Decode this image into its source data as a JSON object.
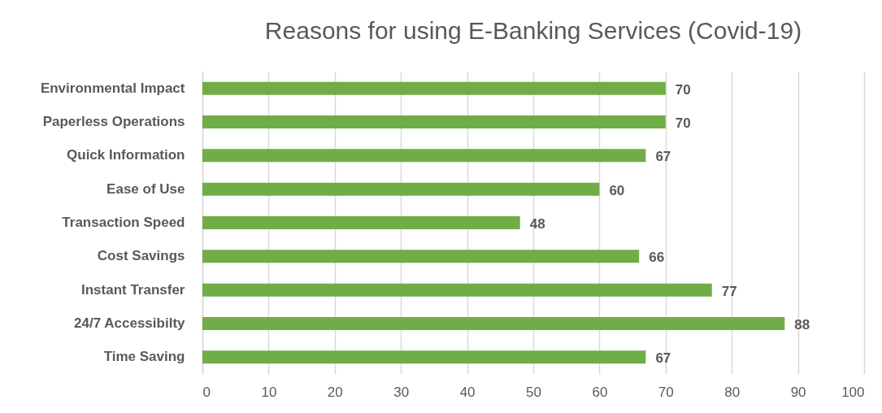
{
  "chart_data": {
    "type": "bar",
    "orientation": "horizontal",
    "title": "Reasons for using E-Banking Services (Covid-19)",
    "categories": [
      "Environmental Impact",
      "Paperless Operations",
      "Quick Information",
      "Ease of Use",
      "Transaction Speed",
      "Cost Savings",
      "Instant Transfer",
      "24/7 Accessibilty",
      "Time Saving"
    ],
    "values": [
      70,
      70,
      67,
      60,
      48,
      66,
      77,
      88,
      67
    ],
    "color": "#70ad47",
    "xlim": [
      0,
      100
    ],
    "xticks": [
      0,
      10,
      20,
      30,
      40,
      50,
      60,
      70,
      80,
      90,
      100
    ],
    "grid": "x",
    "data_labels": true
  }
}
